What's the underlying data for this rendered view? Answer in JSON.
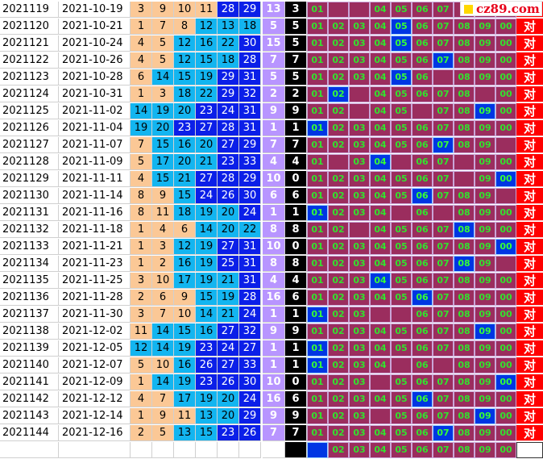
{
  "logo_text": "cz89.com",
  "colors": {
    "peach": "#fbc896",
    "cyan": "#13b5f0",
    "blue": "#0b1fe8",
    "sum_col": "#b895ff",
    "tail_col": "#000000",
    "trend_bg": "#9b2d5e",
    "hit_blue": "#0036e3",
    "result_red": "#ff0000"
  },
  "trend_labels": [
    "01",
    "02",
    "03",
    "04",
    "05",
    "06",
    "07",
    "08",
    "09",
    "00"
  ],
  "result_label": "对",
  "rows": [
    {
      "issue": "2021119",
      "date": "2021-10-19",
      "balls": [
        3,
        9,
        10,
        11,
        28,
        29
      ],
      "sum": "13",
      "tail": "3",
      "cells": [
        "h",
        "m",
        "m",
        "h",
        "h",
        "h",
        "h",
        "m",
        "m",
        "m"
      ],
      "blue_idx": -1,
      "res": true
    },
    {
      "issue": "2021120",
      "date": "2021-10-21",
      "balls": [
        1,
        7,
        8,
        12,
        13,
        18
      ],
      "sum": "5",
      "tail": "5",
      "cells": [
        "h",
        "h",
        "h",
        "h",
        "b",
        "h",
        "h",
        "h",
        "h",
        "h"
      ],
      "blue_idx": 4,
      "res": true
    },
    {
      "issue": "2021121",
      "date": "2021-10-24",
      "balls": [
        4,
        5,
        12,
        16,
        22,
        30
      ],
      "sum": "15",
      "tail": "5",
      "cells": [
        "h",
        "h",
        "h",
        "h",
        "b",
        "h",
        "h",
        "h",
        "h",
        "h"
      ],
      "blue_idx": 4,
      "res": true
    },
    {
      "issue": "2021122",
      "date": "2021-10-26",
      "balls": [
        4,
        5,
        12,
        15,
        18,
        28
      ],
      "sum": "7",
      "tail": "7",
      "cells": [
        "h",
        "h",
        "h",
        "h",
        "h",
        "h",
        "b",
        "h",
        "h",
        "h"
      ],
      "blue_idx": 6,
      "res": true
    },
    {
      "issue": "2021123",
      "date": "2021-10-28",
      "balls": [
        6,
        14,
        15,
        19,
        29,
        31
      ],
      "sum": "5",
      "tail": "5",
      "cells": [
        "h",
        "h",
        "h",
        "h",
        "b",
        "h",
        "m",
        "h",
        "h",
        "h"
      ],
      "blue_idx": 4,
      "res": true
    },
    {
      "issue": "2021124",
      "date": "2021-10-31",
      "balls": [
        1,
        3,
        18,
        22,
        29,
        32
      ],
      "sum": "2",
      "tail": "2",
      "cells": [
        "h",
        "b",
        "m",
        "h",
        "h",
        "h",
        "h",
        "h",
        "m",
        "h"
      ],
      "blue_idx": 1,
      "res": true
    },
    {
      "issue": "2021125",
      "date": "2021-11-02",
      "balls": [
        14,
        19,
        20,
        23,
        24,
        31
      ],
      "sum": "9",
      "tail": "9",
      "cells": [
        "h",
        "h",
        "m",
        "h",
        "h",
        "m",
        "h",
        "h",
        "b",
        "h"
      ],
      "blue_idx": 8,
      "res": true
    },
    {
      "issue": "2021126",
      "date": "2021-11-04",
      "balls": [
        19,
        20,
        23,
        27,
        28,
        31
      ],
      "sum": "1",
      "tail": "1",
      "cells": [
        "b",
        "h",
        "h",
        "h",
        "h",
        "h",
        "h",
        "h",
        "h",
        "h"
      ],
      "blue_idx": 0,
      "res": true
    },
    {
      "issue": "2021127",
      "date": "2021-11-07",
      "balls": [
        7,
        15,
        16,
        20,
        27,
        29
      ],
      "sum": "7",
      "tail": "7",
      "cells": [
        "h",
        "h",
        "h",
        "h",
        "h",
        "h",
        "b",
        "h",
        "h",
        "m"
      ],
      "blue_idx": 6,
      "res": true
    },
    {
      "issue": "2021128",
      "date": "2021-11-09",
      "balls": [
        5,
        17,
        20,
        21,
        23,
        33
      ],
      "sum": "4",
      "tail": "4",
      "cells": [
        "h",
        "m",
        "h",
        "b",
        "m",
        "h",
        "h",
        "m",
        "h",
        "h"
      ],
      "blue_idx": 3,
      "res": true
    },
    {
      "issue": "2021129",
      "date": "2021-11-11",
      "balls": [
        4,
        15,
        21,
        27,
        28,
        29
      ],
      "sum": "10",
      "tail": "0",
      "cells": [
        "h",
        "h",
        "h",
        "h",
        "h",
        "h",
        "h",
        "m",
        "h",
        "b"
      ],
      "blue_idx": 9,
      "res": true
    },
    {
      "issue": "2021130",
      "date": "2021-11-14",
      "balls": [
        8,
        9,
        15,
        24,
        26,
        30
      ],
      "sum": "6",
      "tail": "6",
      "cells": [
        "h",
        "h",
        "h",
        "h",
        "h",
        "b",
        "h",
        "h",
        "h",
        "m"
      ],
      "blue_idx": 5,
      "res": true
    },
    {
      "issue": "2021131",
      "date": "2021-11-16",
      "balls": [
        8,
        11,
        18,
        19,
        20,
        24
      ],
      "sum": "1",
      "tail": "1",
      "cells": [
        "b",
        "h",
        "h",
        "h",
        "m",
        "h",
        "m",
        "h",
        "h",
        "h"
      ],
      "blue_idx": 0,
      "res": true
    },
    {
      "issue": "2021132",
      "date": "2021-11-18",
      "balls": [
        1,
        4,
        6,
        14,
        20,
        22
      ],
      "sum": "8",
      "tail": "8",
      "cells": [
        "h",
        "h",
        "m",
        "h",
        "h",
        "h",
        "h",
        "b",
        "h",
        "h"
      ],
      "blue_idx": 7,
      "res": true
    },
    {
      "issue": "2021133",
      "date": "2021-11-21",
      "balls": [
        1,
        3,
        12,
        19,
        27,
        31
      ],
      "sum": "10",
      "tail": "0",
      "cells": [
        "h",
        "h",
        "h",
        "h",
        "h",
        "h",
        "h",
        "h",
        "h",
        "b"
      ],
      "blue_idx": 9,
      "res": true
    },
    {
      "issue": "2021134",
      "date": "2021-11-23",
      "balls": [
        1,
        2,
        16,
        19,
        25,
        31
      ],
      "sum": "8",
      "tail": "8",
      "cells": [
        "h",
        "h",
        "h",
        "h",
        "h",
        "h",
        "h",
        "b",
        "h",
        "m"
      ],
      "blue_idx": 7,
      "res": true
    },
    {
      "issue": "2021135",
      "date": "2021-11-25",
      "balls": [
        3,
        10,
        17,
        19,
        21,
        31
      ],
      "sum": "4",
      "tail": "4",
      "cells": [
        "h",
        "h",
        "h",
        "b",
        "h",
        "h",
        "h",
        "h",
        "h",
        "h"
      ],
      "blue_idx": 3,
      "res": true
    },
    {
      "issue": "2021136",
      "date": "2021-11-28",
      "balls": [
        2,
        6,
        9,
        15,
        19,
        28
      ],
      "sum": "16",
      "tail": "6",
      "cells": [
        "h",
        "h",
        "h",
        "h",
        "h",
        "b",
        "h",
        "h",
        "h",
        "h"
      ],
      "blue_idx": 5,
      "res": true
    },
    {
      "issue": "2021137",
      "date": "2021-11-30",
      "balls": [
        3,
        7,
        10,
        14,
        21,
        24
      ],
      "sum": "1",
      "tail": "1",
      "cells": [
        "b",
        "h",
        "h",
        "m",
        "m",
        "h",
        "h",
        "h",
        "h",
        "h"
      ],
      "blue_idx": 0,
      "res": true
    },
    {
      "issue": "2021138",
      "date": "2021-12-02",
      "balls": [
        11,
        14,
        15,
        16,
        27,
        32
      ],
      "sum": "9",
      "tail": "9",
      "cells": [
        "h",
        "h",
        "h",
        "h",
        "h",
        "h",
        "h",
        "h",
        "b",
        "h"
      ],
      "blue_idx": 8,
      "res": true
    },
    {
      "issue": "2021139",
      "date": "2021-12-05",
      "balls": [
        12,
        14,
        19,
        23,
        24,
        27
      ],
      "sum": "1",
      "tail": "1",
      "cells": [
        "b",
        "h",
        "h",
        "h",
        "h",
        "h",
        "h",
        "h",
        "h",
        "h"
      ],
      "blue_idx": 0,
      "res": true
    },
    {
      "issue": "2021140",
      "date": "2021-12-07",
      "balls": [
        5,
        10,
        16,
        26,
        27,
        33
      ],
      "sum": "1",
      "tail": "1",
      "cells": [
        "b",
        "h",
        "h",
        "h",
        "m",
        "h",
        "m",
        "h",
        "h",
        "h"
      ],
      "blue_idx": 0,
      "res": true
    },
    {
      "issue": "2021141",
      "date": "2021-12-09",
      "balls": [
        1,
        14,
        19,
        23,
        26,
        30
      ],
      "sum": "10",
      "tail": "0",
      "cells": [
        "h",
        "h",
        "h",
        "m",
        "h",
        "h",
        "h",
        "h",
        "h",
        "b"
      ],
      "blue_idx": 9,
      "res": true
    },
    {
      "issue": "2021142",
      "date": "2021-12-12",
      "balls": [
        4,
        7,
        17,
        19,
        20,
        24
      ],
      "sum": "16",
      "tail": "6",
      "cells": [
        "h",
        "h",
        "h",
        "h",
        "h",
        "b",
        "h",
        "h",
        "h",
        "h"
      ],
      "blue_idx": 5,
      "res": true
    },
    {
      "issue": "2021143",
      "date": "2021-12-14",
      "balls": [
        1,
        9,
        11,
        13,
        20,
        29
      ],
      "sum": "9",
      "tail": "9",
      "cells": [
        "h",
        "h",
        "h",
        "m",
        "h",
        "h",
        "h",
        "h",
        "b",
        "h"
      ],
      "blue_idx": 8,
      "res": true
    },
    {
      "issue": "2021144",
      "date": "2021-12-16",
      "balls": [
        2,
        5,
        13,
        15,
        23,
        26
      ],
      "sum": "7",
      "tail": "7",
      "cells": [
        "h",
        "h",
        "h",
        "h",
        "h",
        "h",
        "b",
        "h",
        "h",
        "h"
      ],
      "blue_idx": 6,
      "res": true
    },
    {
      "issue": "",
      "date": "",
      "balls": [],
      "sum": "",
      "tail": "",
      "cells": [
        "b",
        "h",
        "h",
        "h",
        "h",
        "h",
        "h",
        "h",
        "h",
        "h"
      ],
      "blue_idx": 0,
      "res": false,
      "blue_empty": true
    }
  ]
}
